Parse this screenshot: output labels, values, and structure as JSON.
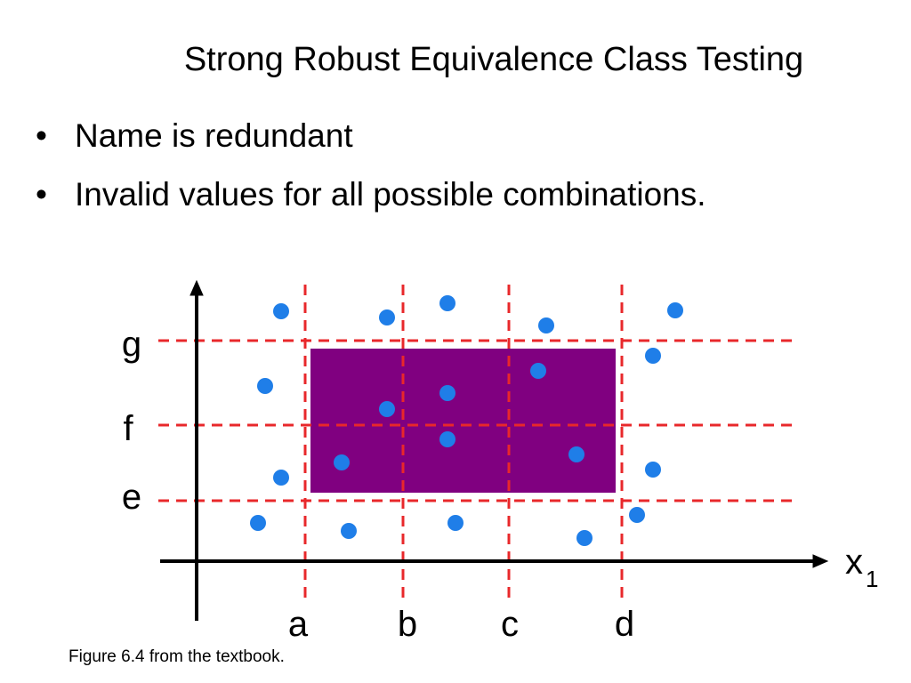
{
  "slide": {
    "title": "Strong Robust Equivalence Class Testing",
    "bullets": [
      "Name is redundant",
      "Invalid values for all possible combinations."
    ],
    "caption": "Figure 6.4 from the textbook."
  },
  "figure": {
    "x_axis_label": "x",
    "x_axis_subscript": "1",
    "x_boundaries": [
      "a",
      "b",
      "c",
      "d"
    ],
    "y_boundaries": [
      "g",
      "f",
      "e"
    ],
    "colors": {
      "region": "#800080",
      "boundary": "#e8282b",
      "point": "#1f7ee8",
      "axis": "#000000"
    }
  }
}
